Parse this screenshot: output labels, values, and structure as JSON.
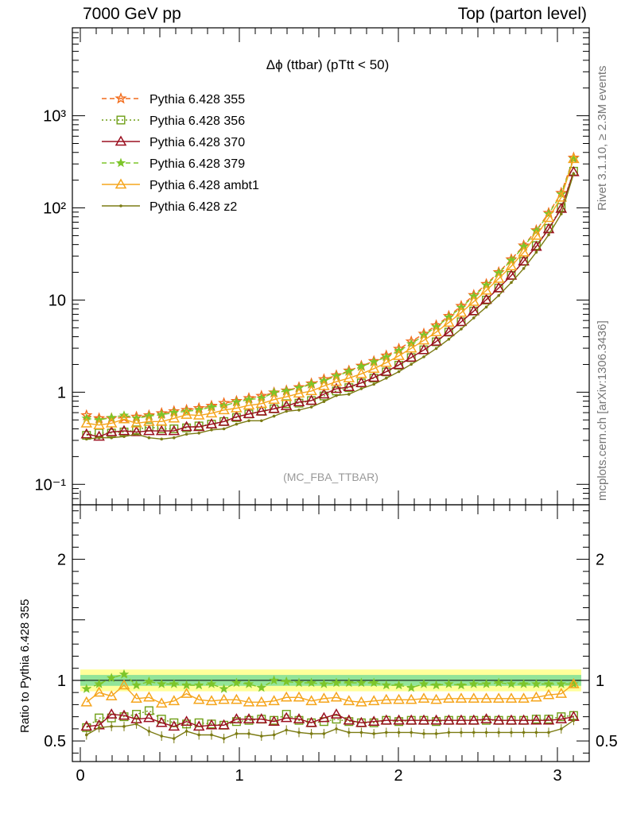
{
  "header": {
    "left": "7000 GeV pp",
    "right": "Top (parton level)"
  },
  "side_labels": {
    "rivet": "Rivet 3.1.10, ≥ 2.3M events",
    "mcplots": "mcplots.cern.ch [arXiv:1306.3436]"
  },
  "chart_data": [
    {
      "type": "line",
      "title": "Δϕ (ttbar) (pTtt < 50)",
      "watermark": "(MC_FBA_TTBAR)",
      "xlabel": "",
      "ylabel": "",
      "xlim": [
        -0.05,
        3.2
      ],
      "ylim": [
        0.06,
        9000
      ],
      "log_y": true,
      "y_ticks": [
        0.1,
        1,
        10,
        100,
        1000
      ],
      "y_tick_labels": [
        "10⁻¹",
        "1",
        "10",
        "10²",
        "10³"
      ],
      "legend_position": "top-left",
      "x": [
        0.039,
        0.118,
        0.196,
        0.275,
        0.353,
        0.432,
        0.511,
        0.589,
        0.668,
        0.746,
        0.825,
        0.903,
        0.982,
        1.06,
        1.139,
        1.218,
        1.296,
        1.375,
        1.453,
        1.532,
        1.61,
        1.689,
        1.767,
        1.846,
        1.924,
        2.003,
        2.081,
        2.16,
        2.238,
        2.317,
        2.395,
        2.474,
        2.553,
        2.631,
        2.71,
        2.788,
        2.867,
        2.945,
        3.024,
        3.102
      ],
      "series": [
        {
          "name": "Pythia 6.428 355",
          "color": "#f26c1b",
          "marker": "star-open",
          "dash": "dashed",
          "values": [
            0.56,
            0.52,
            0.52,
            0.53,
            0.54,
            0.56,
            0.59,
            0.62,
            0.64,
            0.67,
            0.71,
            0.76,
            0.8,
            0.86,
            0.91,
            0.99,
            1.04,
            1.13,
            1.24,
            1.38,
            1.52,
            1.71,
            1.93,
            2.17,
            2.49,
            2.95,
            3.54,
            4.3,
            5.3,
            6.7,
            8.6,
            11.3,
            14.9,
            20.0,
            27.6,
            39,
            57,
            88,
            145,
            350
          ]
        },
        {
          "name": "Pythia 6.428 356",
          "color": "#6f9e16",
          "marker": "square-open",
          "dash": "dotted",
          "values": [
            0.34,
            0.36,
            0.36,
            0.37,
            0.39,
            0.42,
            0.4,
            0.4,
            0.41,
            0.43,
            0.45,
            0.48,
            0.53,
            0.58,
            0.62,
            0.66,
            0.75,
            0.76,
            0.81,
            0.91,
            1.03,
            1.12,
            1.26,
            1.42,
            1.66,
            1.96,
            2.37,
            2.88,
            3.52,
            4.49,
            5.8,
            7.6,
            10.0,
            13.5,
            18.5,
            26.3,
            39,
            60,
            101,
            250
          ]
        },
        {
          "name": "Pythia 6.428 370",
          "color": "#9b1020",
          "marker": "triangle-open",
          "dash": "solid",
          "values": [
            0.35,
            0.33,
            0.37,
            0.38,
            0.37,
            0.38,
            0.38,
            0.38,
            0.42,
            0.42,
            0.45,
            0.48,
            0.54,
            0.58,
            0.62,
            0.66,
            0.71,
            0.78,
            0.81,
            0.95,
            1.09,
            1.14,
            1.26,
            1.44,
            1.67,
            1.98,
            2.38,
            2.87,
            3.55,
            4.5,
            5.8,
            7.6,
            10.1,
            13.5,
            18.5,
            26.4,
            38,
            59,
            98,
            245
          ]
        },
        {
          "name": "Pythia 6.428 379",
          "color": "#7dc52a",
          "marker": "star-filled",
          "dash": "dashed",
          "values": [
            0.52,
            0.5,
            0.53,
            0.56,
            0.52,
            0.55,
            0.57,
            0.6,
            0.62,
            0.64,
            0.69,
            0.71,
            0.78,
            0.83,
            0.86,
            0.99,
            1.03,
            1.11,
            1.22,
            1.33,
            1.49,
            1.68,
            1.9,
            2.13,
            2.4,
            2.82,
            3.34,
            4.15,
            5.1,
            6.5,
            8.3,
            11.0,
            14.5,
            19.6,
            26.9,
            38,
            56,
            86,
            141,
            340
          ]
        },
        {
          "name": "Pythia 6.428 ambt1",
          "color": "#f5a51d",
          "marker": "triangle-open",
          "dash": "solid",
          "values": [
            0.46,
            0.44,
            0.46,
            0.51,
            0.46,
            0.48,
            0.48,
            0.52,
            0.57,
            0.56,
            0.59,
            0.64,
            0.67,
            0.72,
            0.75,
            0.83,
            0.89,
            0.97,
            1.03,
            1.17,
            1.3,
            1.42,
            1.58,
            1.8,
            2.09,
            2.48,
            2.99,
            3.65,
            4.49,
            5.7,
            7.3,
            9.6,
            12.7,
            17.1,
            23.3,
            33,
            50,
            78,
            130,
            340
          ]
        },
        {
          "name": "Pythia 6.428 z2",
          "color": "#7b7b13",
          "marker": "dot",
          "dash": "solid",
          "values": [
            0.31,
            0.32,
            0.32,
            0.33,
            0.35,
            0.32,
            0.31,
            0.32,
            0.35,
            0.36,
            0.39,
            0.4,
            0.45,
            0.49,
            0.49,
            0.55,
            0.62,
            0.64,
            0.69,
            0.79,
            0.92,
            0.95,
            1.09,
            1.22,
            1.42,
            1.67,
            2.01,
            2.42,
            2.98,
            3.76,
            4.85,
            6.4,
            8.4,
            11.2,
            15.5,
            22.0,
            33,
            51,
            86,
            235
          ]
        }
      ]
    },
    {
      "type": "line",
      "title": "",
      "xlabel": "",
      "ylabel": "Ratio to Pythia 6.428 355",
      "xlim": [
        -0.05,
        3.2
      ],
      "ylim": [
        0.33,
        2.45
      ],
      "x_ticks": [
        0,
        1,
        2,
        3
      ],
      "y_ticks": [
        0.5,
        1,
        2
      ],
      "y_tick_labels": [
        "0.5",
        "1",
        "2"
      ],
      "x": [
        0.039,
        0.118,
        0.196,
        0.275,
        0.353,
        0.432,
        0.511,
        0.589,
        0.668,
        0.746,
        0.825,
        0.903,
        0.982,
        1.06,
        1.139,
        1.218,
        1.296,
        1.375,
        1.453,
        1.532,
        1.61,
        1.689,
        1.767,
        1.846,
        1.924,
        2.003,
        2.081,
        2.16,
        2.238,
        2.317,
        2.395,
        2.474,
        2.553,
        2.631,
        2.71,
        2.788,
        2.867,
        2.945,
        3.024,
        3.102
      ],
      "series": [
        {
          "name": "Pythia 6.428 356",
          "color": "#6f9e16",
          "marker": "square-open",
          "dash": "dotted",
          "values": [
            0.61,
            0.69,
            0.69,
            0.7,
            0.72,
            0.75,
            0.68,
            0.65,
            0.64,
            0.65,
            0.64,
            0.63,
            0.66,
            0.67,
            0.68,
            0.67,
            0.72,
            0.67,
            0.65,
            0.66,
            0.68,
            0.66,
            0.65,
            0.65,
            0.67,
            0.66,
            0.67,
            0.67,
            0.66,
            0.67,
            0.67,
            0.67,
            0.67,
            0.67,
            0.67,
            0.67,
            0.68,
            0.68,
            0.7,
            0.71
          ]
        },
        {
          "name": "Pythia 6.428 370",
          "color": "#9b1020",
          "marker": "triangle-open",
          "dash": "solid",
          "values": [
            0.62,
            0.63,
            0.72,
            0.71,
            0.68,
            0.69,
            0.65,
            0.62,
            0.66,
            0.62,
            0.63,
            0.63,
            0.68,
            0.68,
            0.68,
            0.66,
            0.69,
            0.68,
            0.65,
            0.69,
            0.72,
            0.67,
            0.65,
            0.66,
            0.67,
            0.67,
            0.67,
            0.67,
            0.67,
            0.67,
            0.67,
            0.67,
            0.68,
            0.67,
            0.67,
            0.67,
            0.67,
            0.67,
            0.68,
            0.7
          ]
        },
        {
          "name": "Pythia 6.428 379",
          "color": "#7dc52a",
          "marker": "star-filled",
          "dash": "dashed",
          "values": [
            0.93,
            0.97,
            1.02,
            1.05,
            0.96,
            0.99,
            0.97,
            0.97,
            0.96,
            0.96,
            0.97,
            0.93,
            0.98,
            0.97,
            0.94,
            1.0,
            0.99,
            0.98,
            0.98,
            0.97,
            0.98,
            0.98,
            0.98,
            0.98,
            0.96,
            0.96,
            0.94,
            0.97,
            0.96,
            0.97,
            0.96,
            0.97,
            0.97,
            0.98,
            0.97,
            0.97,
            0.97,
            0.97,
            0.97,
            0.97
          ]
        },
        {
          "name": "Pythia 6.428 ambt1",
          "color": "#f5a51d",
          "marker": "triangle-open",
          "dash": "solid",
          "values": [
            0.82,
            0.9,
            0.87,
            0.96,
            0.85,
            0.86,
            0.81,
            0.83,
            0.89,
            0.84,
            0.83,
            0.84,
            0.84,
            0.82,
            0.82,
            0.83,
            0.86,
            0.86,
            0.83,
            0.85,
            0.86,
            0.83,
            0.82,
            0.83,
            0.84,
            0.84,
            0.84,
            0.85,
            0.84,
            0.85,
            0.85,
            0.85,
            0.85,
            0.85,
            0.85,
            0.85,
            0.86,
            0.88,
            0.89,
            0.97
          ]
        },
        {
          "name": "Pythia 6.428 z2",
          "color": "#7b7b13",
          "marker": "dot",
          "dash": "solid",
          "values": [
            0.55,
            0.61,
            0.62,
            0.62,
            0.64,
            0.58,
            0.54,
            0.52,
            0.58,
            0.55,
            0.55,
            0.52,
            0.56,
            0.56,
            0.54,
            0.55,
            0.59,
            0.57,
            0.56,
            0.56,
            0.6,
            0.57,
            0.57,
            0.56,
            0.57,
            0.57,
            0.57,
            0.56,
            0.56,
            0.57,
            0.57,
            0.57,
            0.57,
            0.57,
            0.57,
            0.57,
            0.57,
            0.57,
            0.6,
            0.67
          ]
        }
      ],
      "reference_band": {
        "color_outer": "#ffff88",
        "color_inner": "#77dd99"
      }
    }
  ]
}
